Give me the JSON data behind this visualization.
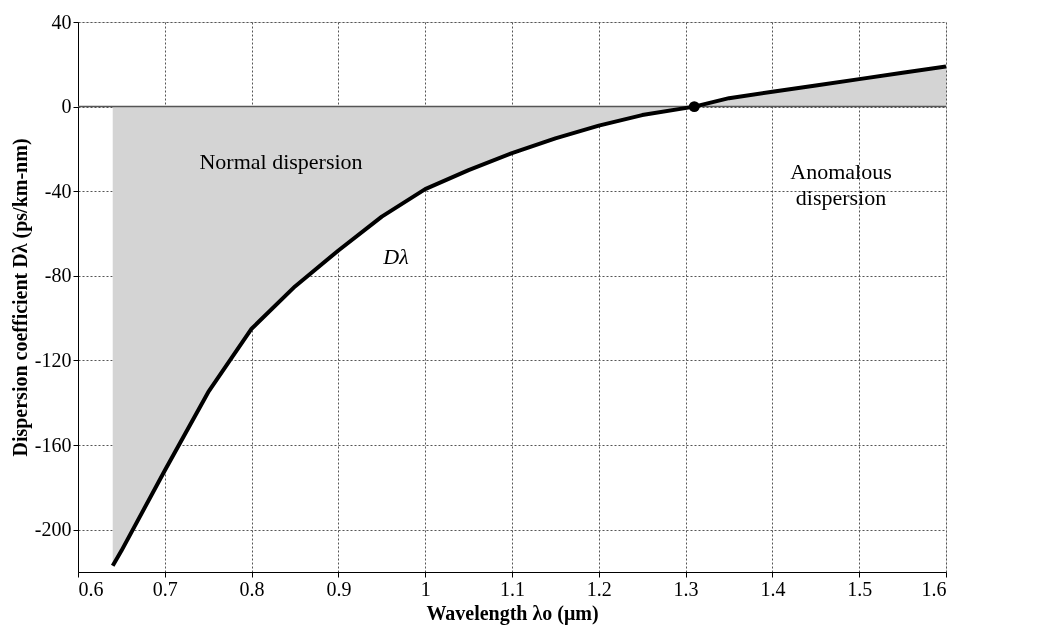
{
  "chart_data": {
    "type": "area",
    "xlabel": "Wavelength λo (μm)",
    "ylabel": "Dispersion coefficient  Dλ (ps/km-nm)",
    "xlim": [
      0.6,
      1.6
    ],
    "ylim": [
      -220,
      40
    ],
    "xticks": [
      0.6,
      0.7,
      0.8,
      0.9,
      1,
      1.1,
      1.2,
      1.3,
      1.4,
      1.5,
      1.6
    ],
    "yticks": [
      40,
      0,
      -40,
      -80,
      -120,
      -160,
      -200
    ],
    "grid": true,
    "series": [
      {
        "color": "#d4d4d4",
        "x": [
          0.64,
          0.65,
          0.7,
          0.75,
          0.8,
          0.85,
          0.9,
          0.95,
          1.0,
          1.05,
          1.1,
          1.15,
          1.2,
          1.25,
          1.31,
          1.35,
          1.4,
          1.45,
          1.5,
          1.55,
          1.6
        ],
        "values": [
          -217,
          -210,
          -172,
          -135,
          -105,
          -85,
          -68,
          -52,
          -39,
          -30,
          -22,
          -15,
          -9,
          -4,
          0,
          4,
          7,
          10,
          13,
          16,
          19
        ]
      },
      {
        "type": "scatter",
        "color": "#000000",
        "marker": "circle",
        "x": [
          1.31
        ],
        "values": [
          0
        ]
      }
    ],
    "ref_lines": [
      {
        "axis": "y",
        "value": 0,
        "color": "#555555"
      }
    ],
    "annotations": [
      "Normal dispersion",
      "Anomalous\ndispersion",
      "Dλ"
    ]
  }
}
